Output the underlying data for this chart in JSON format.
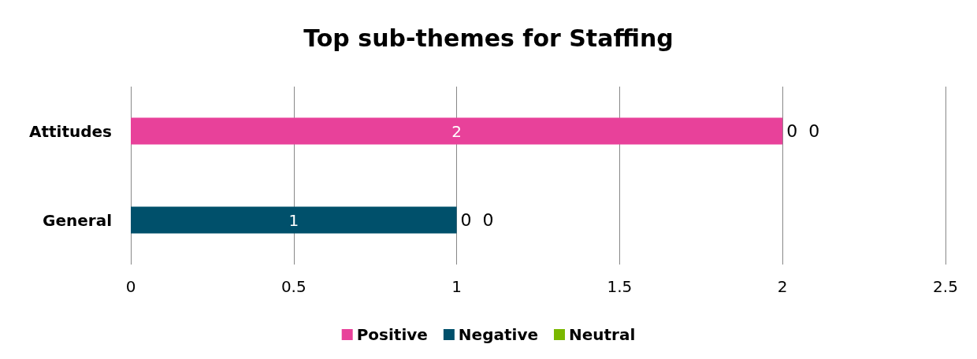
{
  "chart_data": {
    "type": "bar",
    "orientation": "horizontal",
    "stacked": true,
    "title": "Top sub-themes for Staffing",
    "categories": [
      "Attitudes",
      "General"
    ],
    "series": [
      {
        "name": "Positive",
        "color": "#e8419a",
        "values": [
          2,
          0
        ]
      },
      {
        "name": "Negative",
        "color": "#00506b",
        "values": [
          0,
          1
        ]
      },
      {
        "name": "Neutral",
        "color": "#7ab800",
        "values": [
          0,
          0
        ]
      }
    ],
    "xlim": [
      0,
      2.5
    ],
    "xticks": [
      0,
      0.5,
      1,
      1.5,
      2,
      2.5
    ],
    "grid": "x",
    "legend": "bottom",
    "data_labels": true
  }
}
